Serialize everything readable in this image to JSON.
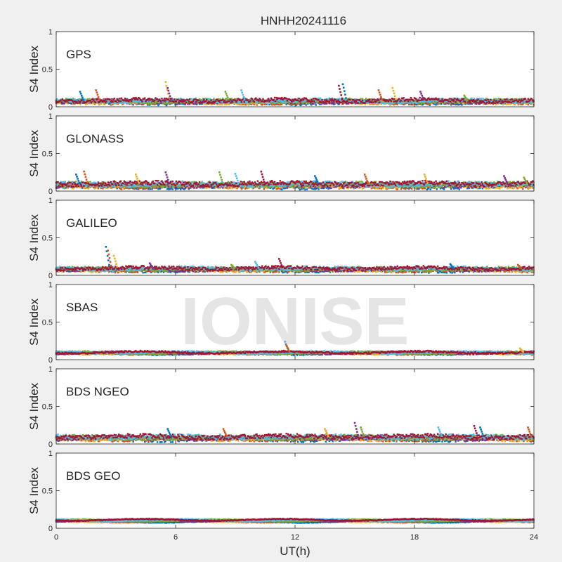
{
  "figure": {
    "title": "HNHH20241116",
    "watermark": "IONISE"
  },
  "chart_data": {
    "type": "scatter",
    "title": "HNHH20241116",
    "xlabel": "UT(h)",
    "xlim": [
      0,
      24
    ],
    "xticks": [
      0,
      6,
      12,
      18,
      24
    ],
    "xtick_labels": [
      "0",
      "6",
      "12",
      "18",
      "24"
    ],
    "ylabel": "S4 Index",
    "ylim": [
      0,
      1
    ],
    "yticks": [
      0,
      0.5,
      1
    ],
    "ytick_labels": [
      "0",
      "0.5",
      "1"
    ],
    "grid": false,
    "series_colors": [
      "#0072BD",
      "#D95319",
      "#EDB120",
      "#7E2F8E",
      "#77AC30",
      "#4DBEEE",
      "#A2142F"
    ],
    "panels": [
      {
        "label": "GPS",
        "baseline": 0.07,
        "spread": 0.03,
        "noise_level": 0.025,
        "spikes": [
          [
            1.2,
            0.2
          ],
          [
            2.0,
            0.22
          ],
          [
            5.5,
            0.33
          ],
          [
            5.6,
            0.25
          ],
          [
            8.5,
            0.2
          ],
          [
            9.3,
            0.22
          ],
          [
            14.2,
            0.28
          ],
          [
            14.4,
            0.3
          ],
          [
            16.2,
            0.22
          ],
          [
            16.9,
            0.25
          ],
          [
            18.3,
            0.2
          ],
          [
            20.5,
            0.15
          ]
        ]
      },
      {
        "label": "GLONASS",
        "baseline": 0.08,
        "spread": 0.04,
        "noise_level": 0.03,
        "spikes": [
          [
            1.0,
            0.22
          ],
          [
            1.4,
            0.26
          ],
          [
            4.0,
            0.22
          ],
          [
            5.5,
            0.25
          ],
          [
            8.2,
            0.25
          ],
          [
            9.0,
            0.23
          ],
          [
            10.3,
            0.26
          ],
          [
            13.0,
            0.2
          ],
          [
            15.5,
            0.22
          ],
          [
            18.5,
            0.22
          ],
          [
            22.5,
            0.2
          ],
          [
            23.5,
            0.18
          ]
        ]
      },
      {
        "label": "GALILEO",
        "baseline": 0.08,
        "spread": 0.03,
        "noise_level": 0.022,
        "spikes": [
          [
            2.5,
            0.38
          ],
          [
            2.6,
            0.33
          ],
          [
            2.9,
            0.26
          ],
          [
            4.7,
            0.16
          ],
          [
            8.8,
            0.14
          ],
          [
            10.0,
            0.18
          ],
          [
            11.2,
            0.22
          ],
          [
            19.8,
            0.15
          ],
          [
            23.2,
            0.14
          ]
        ]
      },
      {
        "label": "SBAS",
        "baseline": 0.09,
        "spread": 0.015,
        "noise_level": 0.012,
        "spikes": [
          [
            11.5,
            0.24
          ],
          [
            11.55,
            0.2
          ],
          [
            23.3,
            0.15
          ]
        ]
      },
      {
        "label": "BDS NGEO",
        "baseline": 0.08,
        "spread": 0.035,
        "noise_level": 0.028,
        "spikes": [
          [
            5.6,
            0.2
          ],
          [
            8.4,
            0.2
          ],
          [
            13.5,
            0.2
          ],
          [
            15.0,
            0.28
          ],
          [
            15.3,
            0.22
          ],
          [
            19.2,
            0.22
          ],
          [
            21.0,
            0.24
          ],
          [
            21.3,
            0.22
          ],
          [
            23.7,
            0.22
          ]
        ]
      },
      {
        "label": "BDS GEO",
        "baseline": 0.1,
        "spread": 0.025,
        "noise_level": 0.006,
        "spikes": []
      }
    ]
  }
}
